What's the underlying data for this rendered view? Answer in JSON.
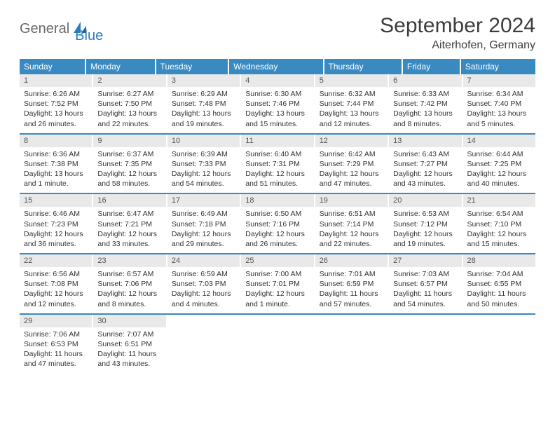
{
  "logo": {
    "text1": "General",
    "text2": "Blue"
  },
  "title": {
    "month": "September 2024",
    "location": "Aiterhofen, Germany"
  },
  "colors": {
    "header_bg": "#3a8ac2",
    "header_fg": "#ffffff",
    "daynum_bg": "#e9e9e9",
    "daynum_fg": "#555555",
    "border": "#3a8ac2",
    "text": "#333333",
    "logo_gray": "#6a6a6a",
    "logo_blue": "#2a7bbf"
  },
  "weekdays": [
    "Sunday",
    "Monday",
    "Tuesday",
    "Wednesday",
    "Thursday",
    "Friday",
    "Saturday"
  ],
  "weeks": [
    {
      "nums": [
        "1",
        "2",
        "3",
        "4",
        "5",
        "6",
        "7"
      ],
      "cells": [
        {
          "sunrise": "Sunrise: 6:26 AM",
          "sunset": "Sunset: 7:52 PM",
          "daylight": "Daylight: 13 hours and 26 minutes."
        },
        {
          "sunrise": "Sunrise: 6:27 AM",
          "sunset": "Sunset: 7:50 PM",
          "daylight": "Daylight: 13 hours and 22 minutes."
        },
        {
          "sunrise": "Sunrise: 6:29 AM",
          "sunset": "Sunset: 7:48 PM",
          "daylight": "Daylight: 13 hours and 19 minutes."
        },
        {
          "sunrise": "Sunrise: 6:30 AM",
          "sunset": "Sunset: 7:46 PM",
          "daylight": "Daylight: 13 hours and 15 minutes."
        },
        {
          "sunrise": "Sunrise: 6:32 AM",
          "sunset": "Sunset: 7:44 PM",
          "daylight": "Daylight: 13 hours and 12 minutes."
        },
        {
          "sunrise": "Sunrise: 6:33 AM",
          "sunset": "Sunset: 7:42 PM",
          "daylight": "Daylight: 13 hours and 8 minutes."
        },
        {
          "sunrise": "Sunrise: 6:34 AM",
          "sunset": "Sunset: 7:40 PM",
          "daylight": "Daylight: 13 hours and 5 minutes."
        }
      ]
    },
    {
      "nums": [
        "8",
        "9",
        "10",
        "11",
        "12",
        "13",
        "14"
      ],
      "cells": [
        {
          "sunrise": "Sunrise: 6:36 AM",
          "sunset": "Sunset: 7:38 PM",
          "daylight": "Daylight: 13 hours and 1 minute."
        },
        {
          "sunrise": "Sunrise: 6:37 AM",
          "sunset": "Sunset: 7:35 PM",
          "daylight": "Daylight: 12 hours and 58 minutes."
        },
        {
          "sunrise": "Sunrise: 6:39 AM",
          "sunset": "Sunset: 7:33 PM",
          "daylight": "Daylight: 12 hours and 54 minutes."
        },
        {
          "sunrise": "Sunrise: 6:40 AM",
          "sunset": "Sunset: 7:31 PM",
          "daylight": "Daylight: 12 hours and 51 minutes."
        },
        {
          "sunrise": "Sunrise: 6:42 AM",
          "sunset": "Sunset: 7:29 PM",
          "daylight": "Daylight: 12 hours and 47 minutes."
        },
        {
          "sunrise": "Sunrise: 6:43 AM",
          "sunset": "Sunset: 7:27 PM",
          "daylight": "Daylight: 12 hours and 43 minutes."
        },
        {
          "sunrise": "Sunrise: 6:44 AM",
          "sunset": "Sunset: 7:25 PM",
          "daylight": "Daylight: 12 hours and 40 minutes."
        }
      ]
    },
    {
      "nums": [
        "15",
        "16",
        "17",
        "18",
        "19",
        "20",
        "21"
      ],
      "cells": [
        {
          "sunrise": "Sunrise: 6:46 AM",
          "sunset": "Sunset: 7:23 PM",
          "daylight": "Daylight: 12 hours and 36 minutes."
        },
        {
          "sunrise": "Sunrise: 6:47 AM",
          "sunset": "Sunset: 7:21 PM",
          "daylight": "Daylight: 12 hours and 33 minutes."
        },
        {
          "sunrise": "Sunrise: 6:49 AM",
          "sunset": "Sunset: 7:18 PM",
          "daylight": "Daylight: 12 hours and 29 minutes."
        },
        {
          "sunrise": "Sunrise: 6:50 AM",
          "sunset": "Sunset: 7:16 PM",
          "daylight": "Daylight: 12 hours and 26 minutes."
        },
        {
          "sunrise": "Sunrise: 6:51 AM",
          "sunset": "Sunset: 7:14 PM",
          "daylight": "Daylight: 12 hours and 22 minutes."
        },
        {
          "sunrise": "Sunrise: 6:53 AM",
          "sunset": "Sunset: 7:12 PM",
          "daylight": "Daylight: 12 hours and 19 minutes."
        },
        {
          "sunrise": "Sunrise: 6:54 AM",
          "sunset": "Sunset: 7:10 PM",
          "daylight": "Daylight: 12 hours and 15 minutes."
        }
      ]
    },
    {
      "nums": [
        "22",
        "23",
        "24",
        "25",
        "26",
        "27",
        "28"
      ],
      "cells": [
        {
          "sunrise": "Sunrise: 6:56 AM",
          "sunset": "Sunset: 7:08 PM",
          "daylight": "Daylight: 12 hours and 12 minutes."
        },
        {
          "sunrise": "Sunrise: 6:57 AM",
          "sunset": "Sunset: 7:06 PM",
          "daylight": "Daylight: 12 hours and 8 minutes."
        },
        {
          "sunrise": "Sunrise: 6:59 AM",
          "sunset": "Sunset: 7:03 PM",
          "daylight": "Daylight: 12 hours and 4 minutes."
        },
        {
          "sunrise": "Sunrise: 7:00 AM",
          "sunset": "Sunset: 7:01 PM",
          "daylight": "Daylight: 12 hours and 1 minute."
        },
        {
          "sunrise": "Sunrise: 7:01 AM",
          "sunset": "Sunset: 6:59 PM",
          "daylight": "Daylight: 11 hours and 57 minutes."
        },
        {
          "sunrise": "Sunrise: 7:03 AM",
          "sunset": "Sunset: 6:57 PM",
          "daylight": "Daylight: 11 hours and 54 minutes."
        },
        {
          "sunrise": "Sunrise: 7:04 AM",
          "sunset": "Sunset: 6:55 PM",
          "daylight": "Daylight: 11 hours and 50 minutes."
        }
      ]
    },
    {
      "nums": [
        "29",
        "30",
        "",
        "",
        "",
        "",
        ""
      ],
      "cells": [
        {
          "sunrise": "Sunrise: 7:06 AM",
          "sunset": "Sunset: 6:53 PM",
          "daylight": "Daylight: 11 hours and 47 minutes."
        },
        {
          "sunrise": "Sunrise: 7:07 AM",
          "sunset": "Sunset: 6:51 PM",
          "daylight": "Daylight: 11 hours and 43 minutes."
        },
        null,
        null,
        null,
        null,
        null
      ]
    }
  ]
}
